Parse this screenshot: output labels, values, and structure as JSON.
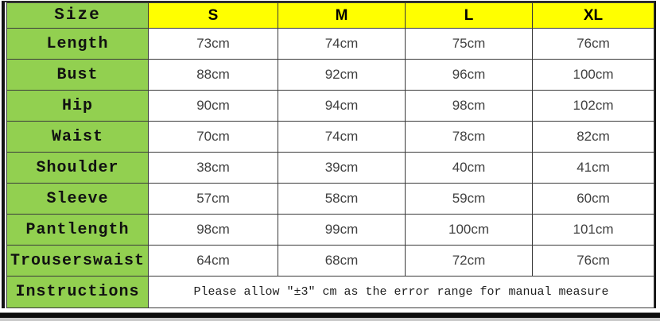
{
  "table": {
    "header": {
      "label": "Size",
      "columns": [
        "S",
        "M",
        "L",
        "XL"
      ]
    },
    "rows": [
      {
        "label": "Length",
        "values": [
          "73cm",
          "74cm",
          "75cm",
          "76cm"
        ]
      },
      {
        "label": "Bust",
        "values": [
          "88cm",
          "92cm",
          "96cm",
          "100cm"
        ]
      },
      {
        "label": "Hip",
        "values": [
          "90cm",
          "94cm",
          "98cm",
          "102cm"
        ]
      },
      {
        "label": "Waist",
        "values": [
          "70cm",
          "74cm",
          "78cm",
          "82cm"
        ]
      },
      {
        "label": "Shoulder",
        "values": [
          "38cm",
          "39cm",
          "40cm",
          "41cm"
        ]
      },
      {
        "label": "Sleeve",
        "values": [
          "57cm",
          "58cm",
          "59cm",
          "60cm"
        ]
      },
      {
        "label": "Pantlength",
        "values": [
          "98cm",
          "99cm",
          "100cm",
          "101cm"
        ]
      },
      {
        "label": "Trouserswaist",
        "values": [
          "64cm",
          "68cm",
          "72cm",
          "76cm"
        ]
      }
    ],
    "instructions": {
      "label": "Instructions",
      "text": "Please allow ″±3″ cm as the error range for manual measure"
    }
  },
  "colors": {
    "label_bg": "#92D050",
    "header_bg": "#FFFF00",
    "border": "#3a3a3a",
    "value_text": "#3f3f3f"
  }
}
